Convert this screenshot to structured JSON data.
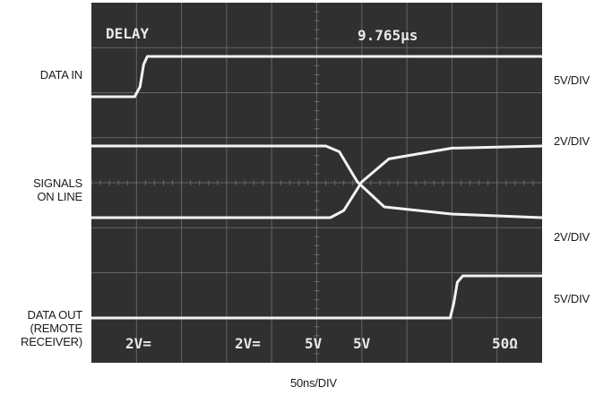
{
  "labels": {
    "data_in": "DATA IN",
    "signals_on_line": [
      "SIGNALS",
      "ON LINE"
    ],
    "data_out": [
      "DATA OUT",
      "(REMOTE",
      "RECEIVER)"
    ],
    "scale_data_in": "5V/DIV",
    "scale_line_top": "2V/DIV",
    "scale_line_bottom": "2V/DIV",
    "scale_data_out": "5V/DIV",
    "time_scale": "50ns/DIV"
  },
  "screen": {
    "top_left": "DELAY",
    "top_right": "9.765μs",
    "bottom_readouts": [
      "2V=",
      "2V=",
      "5V",
      "5V",
      "50Ω"
    ]
  },
  "colors": {
    "screen_bg": "#2f302f",
    "grid": "#6e6f6e",
    "trace": "#f2f2f2"
  },
  "chart_data": {
    "type": "line",
    "title": "",
    "xlabel": "50ns/DIV",
    "ylabel": "",
    "x_unit": "ns",
    "x_range": [
      0,
      500
    ],
    "grid": true,
    "divisions": {
      "x": 10,
      "y": 8
    },
    "series": [
      {
        "name": "DATA IN",
        "scale": "5V/DIV",
        "points": [
          [
            0,
            0
          ],
          [
            48,
            0
          ],
          [
            54,
            0.25
          ],
          [
            58,
            0.8
          ],
          [
            62,
            1.0
          ],
          [
            500,
            1.0
          ]
        ]
      },
      {
        "name": "SIGNALS ON LINE (upper)",
        "scale": "2V/DIV",
        "points": [
          [
            0,
            1.0
          ],
          [
            260,
            1.0
          ],
          [
            275,
            0.92
          ],
          [
            295,
            0.5
          ],
          [
            325,
            0.15
          ],
          [
            400,
            0.05
          ],
          [
            500,
            0.0
          ]
        ]
      },
      {
        "name": "SIGNALS ON LINE (lower)",
        "scale": "2V/DIV",
        "points": [
          [
            0,
            0.0
          ],
          [
            265,
            0.0
          ],
          [
            280,
            0.1
          ],
          [
            300,
            0.5
          ],
          [
            330,
            0.82
          ],
          [
            400,
            0.97
          ],
          [
            500,
            1.0
          ]
        ]
      },
      {
        "name": "DATA OUT (REMOTE RECEIVER)",
        "scale": "5V/DIV",
        "points": [
          [
            0,
            0
          ],
          [
            398,
            0
          ],
          [
            402,
            0.35
          ],
          [
            406,
            0.85
          ],
          [
            412,
            1.0
          ],
          [
            500,
            1.0
          ]
        ]
      }
    ]
  }
}
